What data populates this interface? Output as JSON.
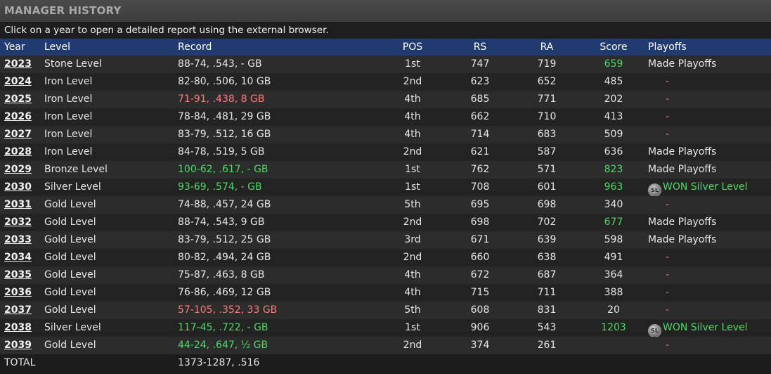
{
  "window": {
    "title": "MANAGER HISTORY",
    "subtitle": "Click on a year to open a detailed report using the external browser."
  },
  "colors": {
    "header_bg": "#213a72",
    "good": "#4cd964",
    "bad": "#ff7b7b",
    "dash": "#e07878",
    "normal": "#e6e6e6"
  },
  "table": {
    "headers": {
      "year": "Year",
      "level": "Level",
      "record": "Record",
      "pos": "POS",
      "rs": "RS",
      "ra": "RA",
      "score": "Score",
      "playoffs": "Playoffs"
    },
    "rows": [
      {
        "year": "2023",
        "level": "Stone Level",
        "record": "88-74, .543, - GB",
        "record_tone": "normal",
        "pos": "1st",
        "rs": "747",
        "ra": "719",
        "score": "659",
        "score_tone": "good",
        "playoffs": "Made Playoffs",
        "playoffs_tone": "normal",
        "trophy": false
      },
      {
        "year": "2024",
        "level": "Iron Level",
        "record": "82-80, .506, 10 GB",
        "record_tone": "normal",
        "pos": "2nd",
        "rs": "623",
        "ra": "652",
        "score": "485",
        "score_tone": "normal",
        "playoffs": "-",
        "playoffs_tone": "dash",
        "trophy": false
      },
      {
        "year": "2025",
        "level": "Iron Level",
        "record": "71-91, .438, 8 GB",
        "record_tone": "bad",
        "pos": "4th",
        "rs": "685",
        "ra": "771",
        "score": "202",
        "score_tone": "normal",
        "playoffs": "-",
        "playoffs_tone": "dash",
        "trophy": false
      },
      {
        "year": "2026",
        "level": "Iron Level",
        "record": "78-84, .481, 29 GB",
        "record_tone": "normal",
        "pos": "4th",
        "rs": "662",
        "ra": "710",
        "score": "413",
        "score_tone": "normal",
        "playoffs": "-",
        "playoffs_tone": "dash",
        "trophy": false
      },
      {
        "year": "2027",
        "level": "Iron Level",
        "record": "83-79, .512, 16 GB",
        "record_tone": "normal",
        "pos": "4th",
        "rs": "714",
        "ra": "683",
        "score": "509",
        "score_tone": "normal",
        "playoffs": "-",
        "playoffs_tone": "dash",
        "trophy": false
      },
      {
        "year": "2028",
        "level": "Iron Level",
        "record": "84-78, .519, 5 GB",
        "record_tone": "normal",
        "pos": "2nd",
        "rs": "621",
        "ra": "587",
        "score": "636",
        "score_tone": "normal",
        "playoffs": "Made Playoffs",
        "playoffs_tone": "normal",
        "trophy": false
      },
      {
        "year": "2029",
        "level": "Bronze Level",
        "record": "100-62, .617, - GB",
        "record_tone": "good",
        "pos": "1st",
        "rs": "762",
        "ra": "571",
        "score": "823",
        "score_tone": "good",
        "playoffs": "Made Playoffs",
        "playoffs_tone": "normal",
        "trophy": false
      },
      {
        "year": "2030",
        "level": "Silver Level",
        "record": "93-69, .574, - GB",
        "record_tone": "good",
        "pos": "1st",
        "rs": "708",
        "ra": "601",
        "score": "963",
        "score_tone": "good",
        "playoffs": "WON Silver Level",
        "playoffs_tone": "good",
        "trophy": true
      },
      {
        "year": "2031",
        "level": "Gold Level",
        "record": "74-88, .457, 24 GB",
        "record_tone": "normal",
        "pos": "5th",
        "rs": "695",
        "ra": "698",
        "score": "340",
        "score_tone": "normal",
        "playoffs": "-",
        "playoffs_tone": "dash",
        "trophy": false
      },
      {
        "year": "2032",
        "level": "Gold Level",
        "record": "88-74, .543, 9 GB",
        "record_tone": "normal",
        "pos": "2nd",
        "rs": "698",
        "ra": "702",
        "score": "677",
        "score_tone": "good",
        "playoffs": "Made Playoffs",
        "playoffs_tone": "normal",
        "trophy": false
      },
      {
        "year": "2033",
        "level": "Gold Level",
        "record": "83-79, .512, 25 GB",
        "record_tone": "normal",
        "pos": "3rd",
        "rs": "671",
        "ra": "639",
        "score": "598",
        "score_tone": "normal",
        "playoffs": "Made Playoffs",
        "playoffs_tone": "normal",
        "trophy": false
      },
      {
        "year": "2034",
        "level": "Gold Level",
        "record": "80-82, .494, 24 GB",
        "record_tone": "normal",
        "pos": "2nd",
        "rs": "660",
        "ra": "638",
        "score": "491",
        "score_tone": "normal",
        "playoffs": "-",
        "playoffs_tone": "dash",
        "trophy": false
      },
      {
        "year": "2035",
        "level": "Gold Level",
        "record": "75-87, .463, 8 GB",
        "record_tone": "normal",
        "pos": "4th",
        "rs": "672",
        "ra": "687",
        "score": "364",
        "score_tone": "normal",
        "playoffs": "-",
        "playoffs_tone": "dash",
        "trophy": false
      },
      {
        "year": "2036",
        "level": "Gold Level",
        "record": "76-86, .469, 12 GB",
        "record_tone": "normal",
        "pos": "4th",
        "rs": "715",
        "ra": "711",
        "score": "388",
        "score_tone": "normal",
        "playoffs": "-",
        "playoffs_tone": "dash",
        "trophy": false
      },
      {
        "year": "2037",
        "level": "Gold Level",
        "record": "57-105, .352, 33 GB",
        "record_tone": "bad",
        "pos": "5th",
        "rs": "608",
        "ra": "831",
        "score": "20",
        "score_tone": "normal",
        "playoffs": "-",
        "playoffs_tone": "dash",
        "trophy": false
      },
      {
        "year": "2038",
        "level": "Silver Level",
        "record": "117-45, .722, - GB",
        "record_tone": "good",
        "pos": "1st",
        "rs": "906",
        "ra": "543",
        "score": "1203",
        "score_tone": "good",
        "playoffs": "WON Silver Level",
        "playoffs_tone": "good",
        "trophy": true
      },
      {
        "year": "2039",
        "level": "Gold Level",
        "record": "44-24, .647, ½ GB",
        "record_tone": "good",
        "pos": "2nd",
        "rs": "374",
        "ra": "261",
        "score": "",
        "score_tone": "normal",
        "playoffs": "-",
        "playoffs_tone": "dash",
        "trophy": false
      }
    ],
    "total": {
      "label": "TOTAL",
      "record": "1373-1287, .516"
    }
  },
  "icons": {
    "trophy": "trophy-medal-icon",
    "trophy_glyph": "SL"
  }
}
